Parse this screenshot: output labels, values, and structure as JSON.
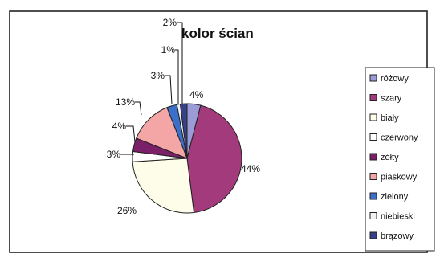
{
  "chart_data": {
    "type": "pie",
    "title": "kolor ścian",
    "legend_position": "right",
    "categories": [
      "różowy",
      "szary",
      "biały",
      "czerwony",
      "żółty",
      "piaskowy",
      "zielony",
      "niebieski",
      "brązowy"
    ],
    "values": [
      4,
      44,
      26,
      3,
      4,
      13,
      3,
      1,
      2
    ],
    "value_labels": [
      "4%",
      "44%",
      "26%",
      "3%",
      "4%",
      "13%",
      "3%",
      "1%",
      "2%"
    ],
    "colors": [
      "#9b9bd8",
      "#a23a7c",
      "#fdfde9",
      "#ffffff",
      "#7a1f68",
      "#f4a6a6",
      "#3b6fc9",
      "#f2f2f2",
      "#39408a"
    ]
  }
}
